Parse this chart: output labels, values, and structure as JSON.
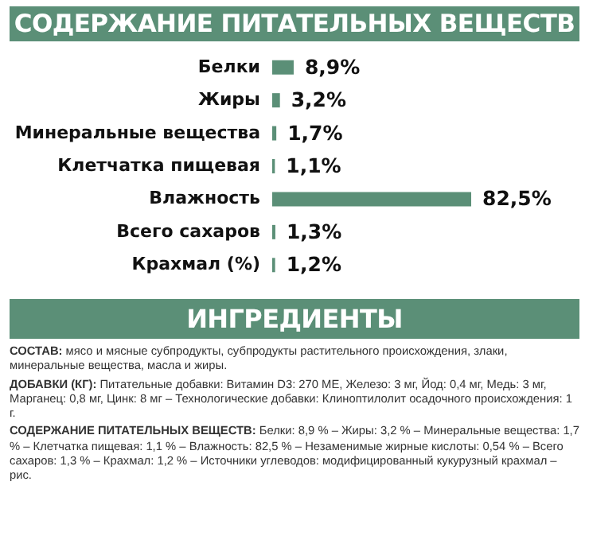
{
  "chart_data": {
    "type": "bar",
    "orientation": "horizontal",
    "title": "СОДЕРЖАНИЕ ПИТАТЕЛЬНЫХ ВЕЩЕСТВ",
    "categories": [
      "Белки",
      "Жиры",
      "Минеральные вещества",
      "Клетчатка пищевая",
      "Влажность",
      "Всего сахаров",
      "Крахмал (%)"
    ],
    "values": [
      8.9,
      3.2,
      1.7,
      1.1,
      82.5,
      1.3,
      1.2
    ],
    "value_labels": [
      "8,9%",
      "3,2%",
      "1,7%",
      "1,1%",
      "82,5%",
      "1,3%",
      "1,2%"
    ],
    "color": "#5b8f77",
    "annotations": [
      "ИНГРЕДИЕНТЫ",
      "СОСТАВ: мясо и мясные субпродукты, субпродукты растительного происхождения, злаки, минеральные вещества, масла и жиры.",
      "ДОБАВКИ (КГ): Питательные добавки: Витамин D3: 270 МЕ, Железо: 3 мг, Йод: 0,4 мг, Медь: 3 мг, Марганец: 0,8 мг, Цинк: 8 мг – Технологические добавки: Клиноптилолит осадочного происхождения: 1 г.",
      "СОДЕРЖАНИЕ ПИТАТЕЛЬНЫХ ВЕЩЕСТВ: Белки: 8,9 % – Жиры: 3,2 % – Минеральные вещества: 1,7 % – Клетчатка пищевая: 1,1 % – Влажность: 82,5 % – Незаменимые жирные кислоты: 0,54 % – Всего сахаров: 1,3 % – Крахмал: 1,2 % – Источники углеводов: модифицированный кукурузный крахмал – рис."
    ]
  }
}
